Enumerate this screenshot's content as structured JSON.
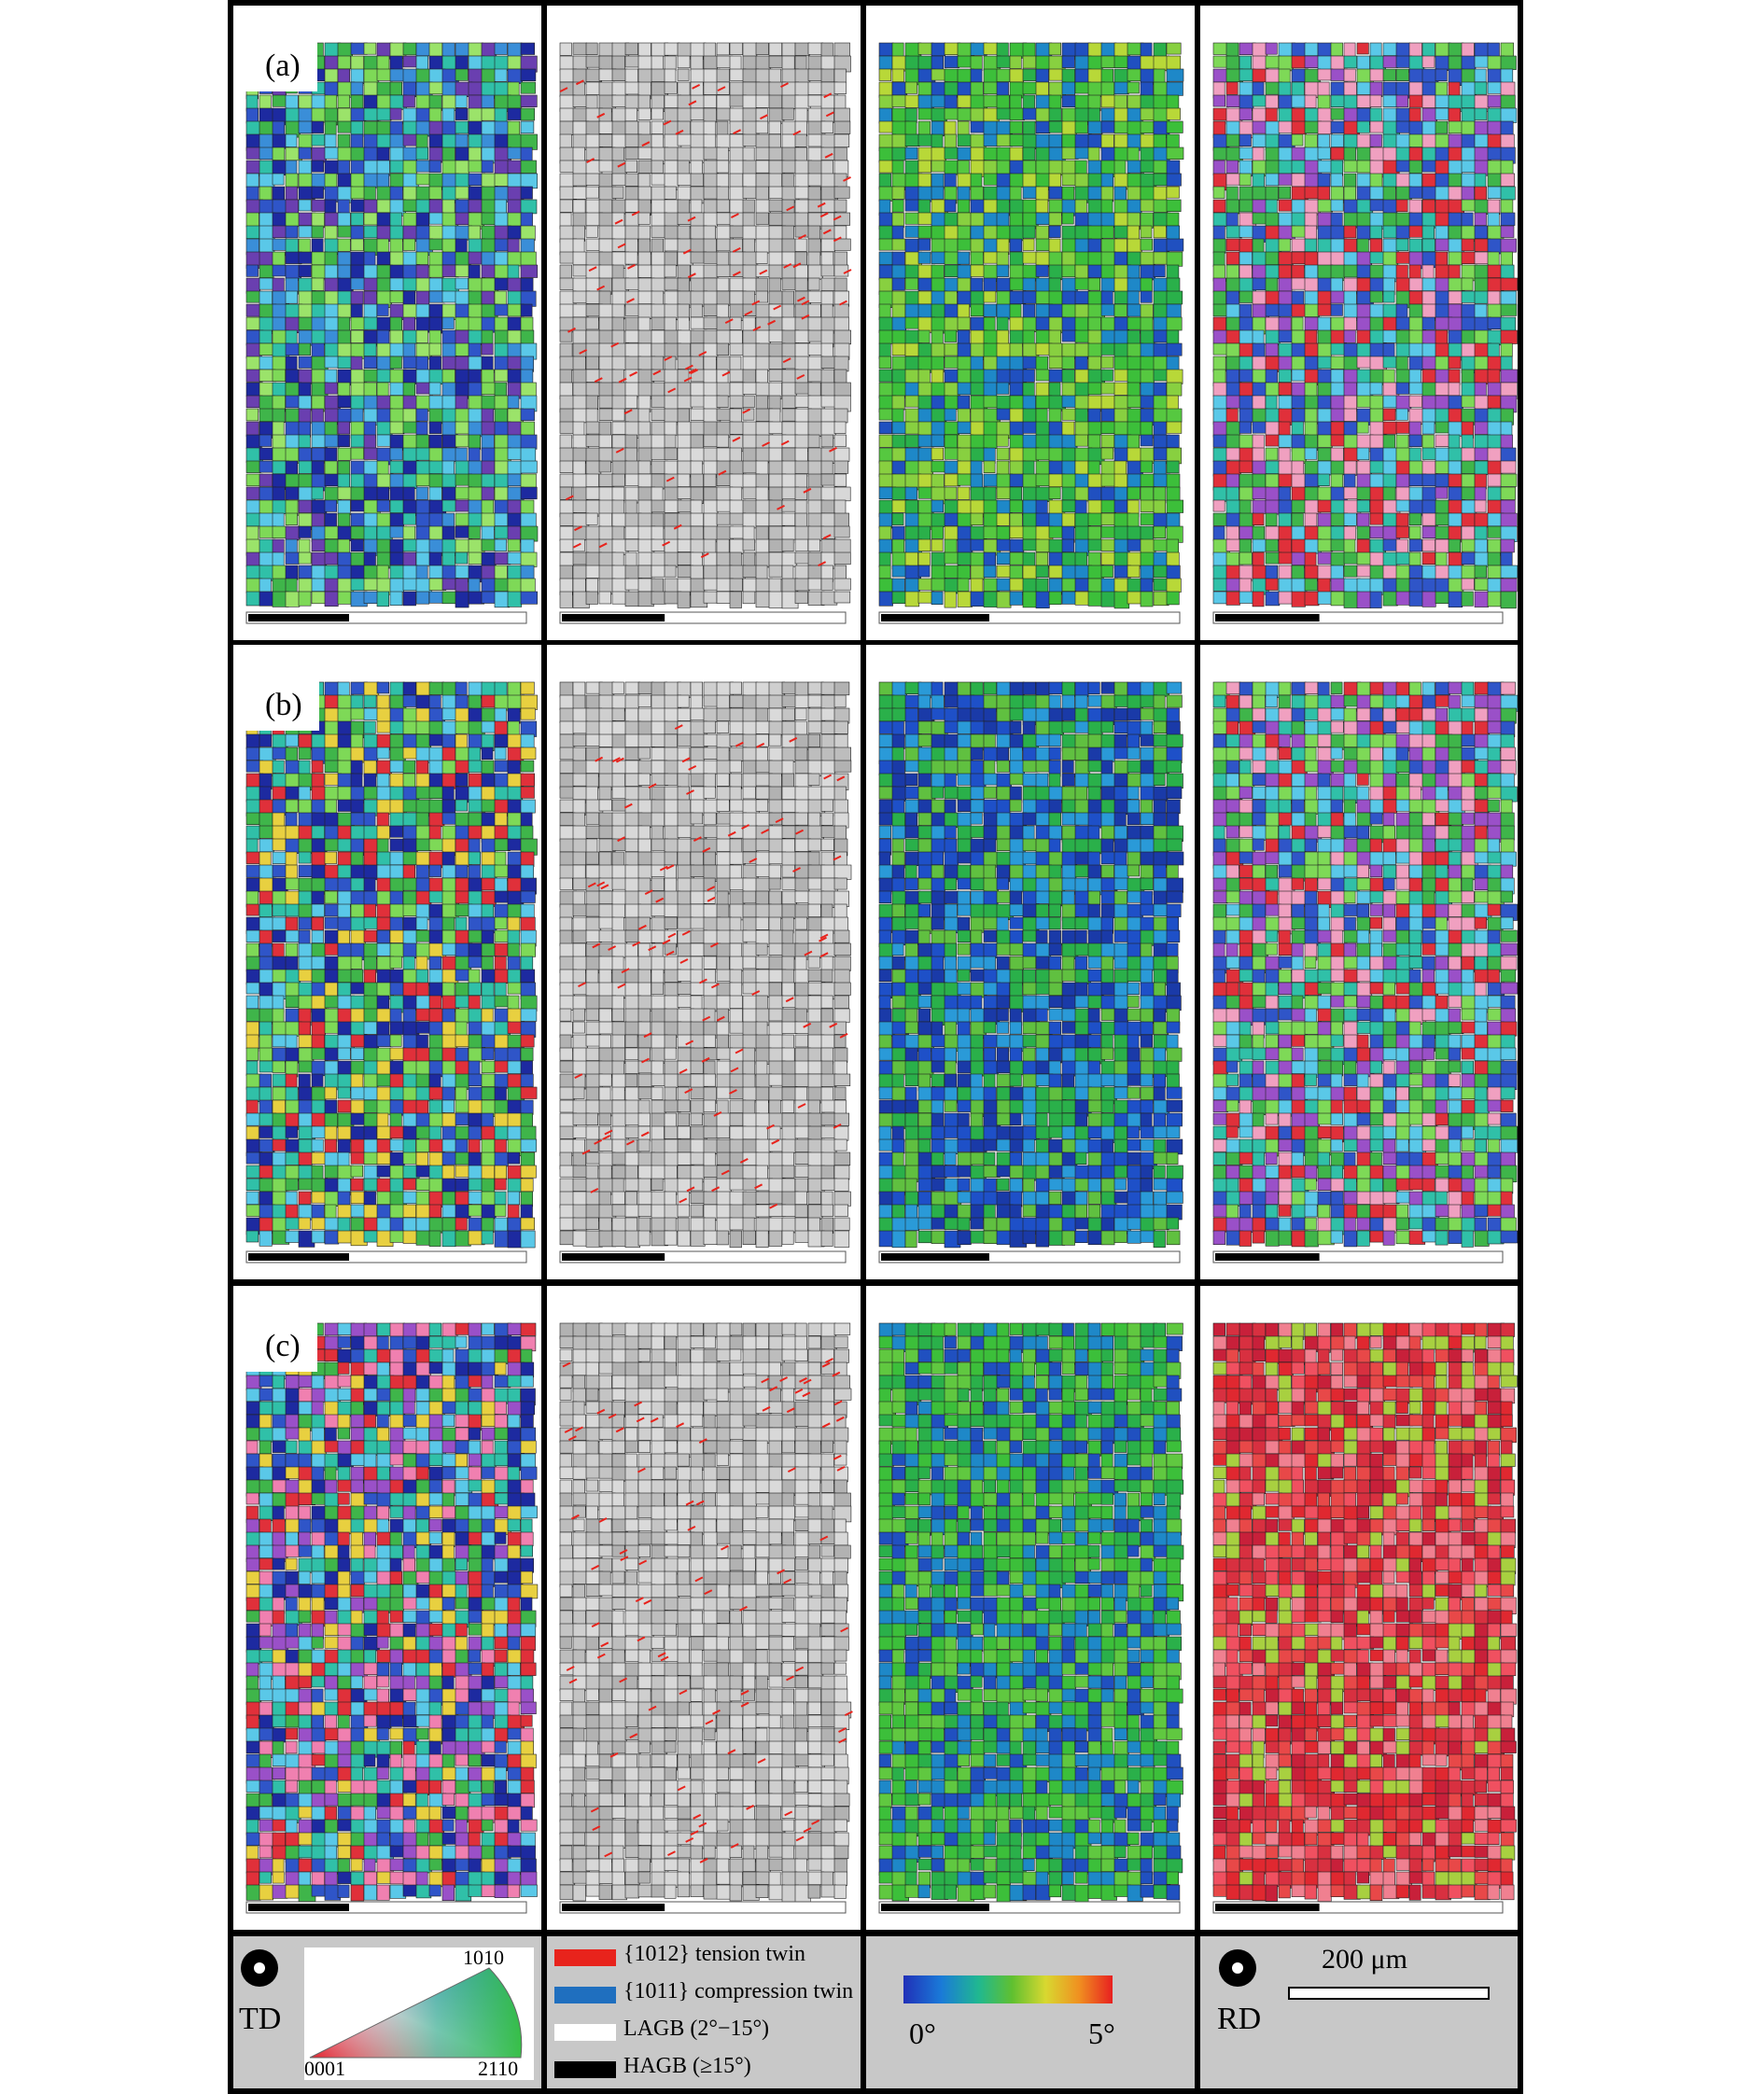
{
  "panels": [
    {
      "label": "(a)"
    },
    {
      "label": "(b)"
    },
    {
      "label": "(c)"
    }
  ],
  "map_types": [
    "ipf-map",
    "boundary-map",
    "kam-map",
    "ipf-rd-map"
  ],
  "legend": {
    "td_label": "TD",
    "rd_label": "RD",
    "ipf_corners": {
      "top": "1010",
      "bottom_left": "0001",
      "bottom_right": "2110"
    },
    "twins": [
      {
        "label": "{1012} tension twin",
        "color": "#e8231c"
      },
      {
        "label": "{1011} compression twin",
        "color": "#1f6fbf"
      },
      {
        "label": "LAGB (2°−15°)",
        "color": "#ffffff"
      },
      {
        "label": "HAGB (≥15°)",
        "color": "#000000"
      }
    ],
    "kam_min": "0°",
    "kam_max": "5°",
    "scale_bar": "200 μm"
  },
  "colors": {
    "tension_twin": "#e8231c",
    "compression_twin": "#1f6fbf",
    "legend_background": "#c8c8c8"
  }
}
